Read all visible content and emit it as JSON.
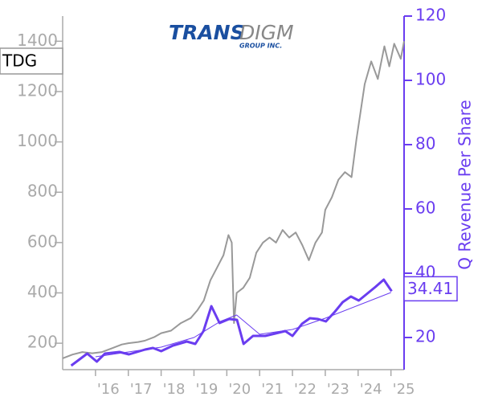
{
  "chart_data": {
    "type": "line",
    "ticker": "TDG",
    "logo": {
      "main": "TRANS",
      "second": "DIGM",
      "sub": "GROUP INC."
    },
    "y2_label": "Q Revenue Per Share",
    "xlim": [
      2015,
      2025.4
    ],
    "xticks": [
      {
        "value": 2016,
        "label": "'16"
      },
      {
        "value": 2017,
        "label": "'17"
      },
      {
        "value": 2018,
        "label": "'18"
      },
      {
        "value": 2019,
        "label": "'19"
      },
      {
        "value": 2020,
        "label": "'20"
      },
      {
        "value": 2021,
        "label": "'21"
      },
      {
        "value": 2022,
        "label": "'22"
      },
      {
        "value": 2023,
        "label": "'23"
      },
      {
        "value": 2024,
        "label": "'24"
      },
      {
        "value": 2025,
        "label": "'25"
      }
    ],
    "ylim": [
      95,
      1500
    ],
    "yticks": [
      200,
      400,
      600,
      800,
      1000,
      1200,
      1400
    ],
    "y2lim": [
      10,
      120
    ],
    "y2ticks": [
      20,
      40,
      60,
      80,
      100,
      120
    ],
    "series": [
      {
        "color": "#999999",
        "width": 2,
        "x": [
          2015.0,
          2015.3,
          2015.6,
          2015.9,
          2016.2,
          2016.5,
          2016.8,
          2017.0,
          2017.3,
          2017.5,
          2017.8,
          2018.0,
          2018.3,
          2018.6,
          2018.9,
          2019.1,
          2019.3,
          2019.5,
          2019.7,
          2019.9,
          2020.05,
          2020.15,
          2020.22,
          2020.3,
          2020.5,
          2020.7,
          2020.9,
          2021.1,
          2021.3,
          2021.5,
          2021.7,
          2021.9,
          2022.1,
          2022.3,
          2022.5,
          2022.7,
          2022.9,
          2023.0,
          2023.2,
          2023.4,
          2023.6,
          2023.8,
          2023.95,
          2024.2,
          2024.4,
          2024.6,
          2024.8,
          2024.95,
          2025.1,
          2025.3,
          2025.4
        ],
        "values": [
          140,
          155,
          165,
          160,
          165,
          180,
          195,
          200,
          205,
          210,
          225,
          240,
          250,
          280,
          300,
          330,
          370,
          450,
          500,
          550,
          630,
          600,
          280,
          400,
          420,
          460,
          560,
          600,
          620,
          600,
          650,
          620,
          640,
          590,
          530,
          600,
          640,
          730,
          780,
          850,
          880,
          860,
          1010,
          1230,
          1320,
          1250,
          1380,
          1300,
          1390,
          1330,
          1400
        ]
      },
      {
        "color": "#6a3df0",
        "width": 3,
        "axis": "y2",
        "x": [
          2015.26,
          2015.75,
          2016.04,
          2016.29,
          2016.73,
          2017.02,
          2017.51,
          2017.75,
          2018.0,
          2018.36,
          2018.78,
          2019.04,
          2019.29,
          2019.53,
          2019.78,
          2020.07,
          2020.31,
          2020.51,
          2020.8,
          2021.17,
          2021.48,
          2021.78,
          2022.0,
          2022.29,
          2022.53,
          2022.78,
          2023.02,
          2023.29,
          2023.53,
          2023.78,
          2024.02,
          2024.26,
          2024.53,
          2024.78,
          2025.02
        ],
        "values": [
          11.25,
          15,
          12.5,
          15,
          15.5,
          14.75,
          16.25,
          16.75,
          15.75,
          17.5,
          18.75,
          18,
          22,
          29.75,
          24.5,
          25.75,
          25.5,
          18,
          20.5,
          20.5,
          21.25,
          22,
          20.5,
          24.25,
          26,
          25.75,
          25,
          28,
          31,
          32.75,
          31.5,
          33.5,
          35.75,
          38,
          34.41
        ]
      },
      {
        "color": "#6a3df0",
        "width": 1,
        "axis": "y2",
        "x": [
          2016,
          2017,
          2018,
          2019,
          2019.8,
          2020.3,
          2021,
          2022,
          2023,
          2024,
          2025
        ],
        "values": [
          14,
          15.5,
          17,
          20,
          25,
          27,
          21,
          22.5,
          26,
          30,
          34
        ]
      }
    ]
  }
}
